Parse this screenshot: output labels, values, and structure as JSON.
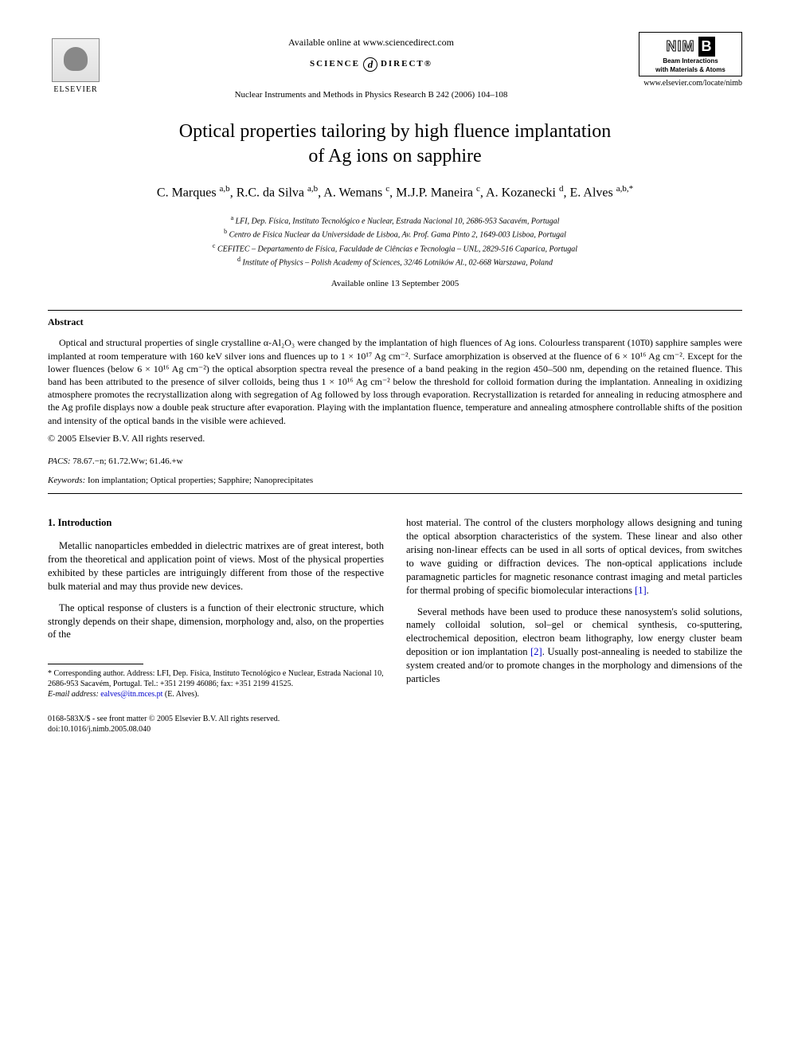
{
  "header": {
    "available_online": "Available online at www.sciencedirect.com",
    "sciencedirect_left": "SCIENCE",
    "sciencedirect_right": "DIRECT®",
    "journal_reference": "Nuclear Instruments and Methods in Physics Research B 242 (2006) 104–108",
    "elsevier_label": "ELSEVIER",
    "nimb_letters": "NIM",
    "nimb_b": "B",
    "nimb_sub1": "Beam Interactions",
    "nimb_sub2": "with Materials & Atoms",
    "journal_url": "www.elsevier.com/locate/nimb"
  },
  "title_line1": "Optical properties tailoring by high fluence implantation",
  "title_line2": "of Ag ions on sapphire",
  "authors_html": "C. Marques <sup>a,b</sup>, R.C. da Silva <sup>a,b</sup>, A. Wemans <sup>c</sup>, M.J.P. Maneira <sup>c</sup>, A. Kozanecki <sup>d</sup>, E. Alves <sup>a,b,*</sup>",
  "affiliations": {
    "a": "LFI, Dep. Física, Instituto Tecnológico e Nuclear, Estrada Nacional 10, 2686-953 Sacavém, Portugal",
    "b": "Centro de Física Nuclear da Universidade de Lisboa, Av. Prof. Gama Pinto 2, 1649-003 Lisboa, Portugal",
    "c": "CEFITEC – Departamento de Física, Faculdade de Ciências e Tecnologia – UNL, 2829-516 Caparica, Portugal",
    "d": "Institute of Physics – Polish Academy of Sciences, 32/46 Lotników Al., 02-668 Warszawa, Poland"
  },
  "date_online": "Available online 13 September 2005",
  "abstract_heading": "Abstract",
  "abstract_body": "Optical and structural properties of single crystalline α-Al₂O₃ were changed by the implantation of high fluences of Ag ions. Colourless transparent (10͞10) sapphire samples were implanted at room temperature with 160 keV silver ions and fluences up to 1 × 10¹⁷ Ag cm⁻². Surface amorphization is observed at the fluence of 6 × 10¹⁶ Ag cm⁻². Except for the lower fluences (below 6 × 10¹⁶ Ag cm⁻²) the optical absorption spectra reveal the presence of a band peaking in the region 450–500 nm, depending on the retained fluence. This band has been attributed to the presence of silver colloids, being thus 1 × 10¹⁶ Ag cm⁻² below the threshold for colloid formation during the implantation. Annealing in oxidizing atmosphere promotes the recrystallization along with segregation of Ag followed by loss through evaporation. Recrystallization is retarded for annealing in reducing atmosphere and the Ag profile displays now a double peak structure after evaporation. Playing with the implantation fluence, temperature and annealing atmosphere controllable shifts of the position and intensity of the optical bands in the visible were achieved.",
  "copyright": "© 2005 Elsevier B.V. All rights reserved.",
  "pacs_label": "PACS:",
  "pacs_codes": "78.67.−n; 61.72.Ww; 61.46.+w",
  "keywords_label": "Keywords:",
  "keywords_text": "Ion implantation; Optical properties; Sapphire; Nanoprecipitates",
  "section1_heading": "1. Introduction",
  "intro_p1": "Metallic nanoparticles embedded in dielectric matrixes are of great interest, both from the theoretical and application point of views. Most of the physical properties exhibited by these particles are intriguingly different from those of the respective bulk material and may thus provide new devices.",
  "intro_p2": "The optical response of clusters is a function of their electronic structure, which strongly depends on their shape, dimension, morphology and, also, on the properties of the",
  "intro_p3_pre": "host material. The control of the clusters morphology allows designing and tuning the optical absorption characteristics of the system. These linear and also other arising non-linear effects can be used in all sorts of optical devices, from switches to wave guiding or diffraction devices. The non-optical applications include paramagnetic particles for magnetic resonance contrast imaging and metal particles for thermal probing of specific biomolecular interactions ",
  "ref1": "[1]",
  "intro_p4_pre": "Several methods have been used to produce these nanosystem's solid solutions, namely colloidal solution, sol–gel or chemical synthesis, co-sputtering, electrochemical deposition, electron beam lithography, low energy cluster beam deposition or ion implantation ",
  "ref2": "[2]",
  "intro_p4_post": ". Usually post-annealing is needed to stabilize the system created and/or to promote changes in the morphology and dimensions of the particles",
  "footnote_corr": "* Corresponding author. Address: LFI, Dep. Física, Instituto Tecnológico e Nuclear, Estrada Nacional 10, 2686-953 Sacavém, Portugal. Tel.: +351 2199 46086; fax: +351 2199 41525.",
  "footnote_email_label": "E-mail address:",
  "footnote_email": "ealves@itn.mces.pt",
  "footnote_email_who": "(E. Alves).",
  "bottom_line1": "0168-583X/$ - see front matter © 2005 Elsevier B.V. All rights reserved.",
  "bottom_line2": "doi:10.1016/j.nimb.2005.08.040"
}
